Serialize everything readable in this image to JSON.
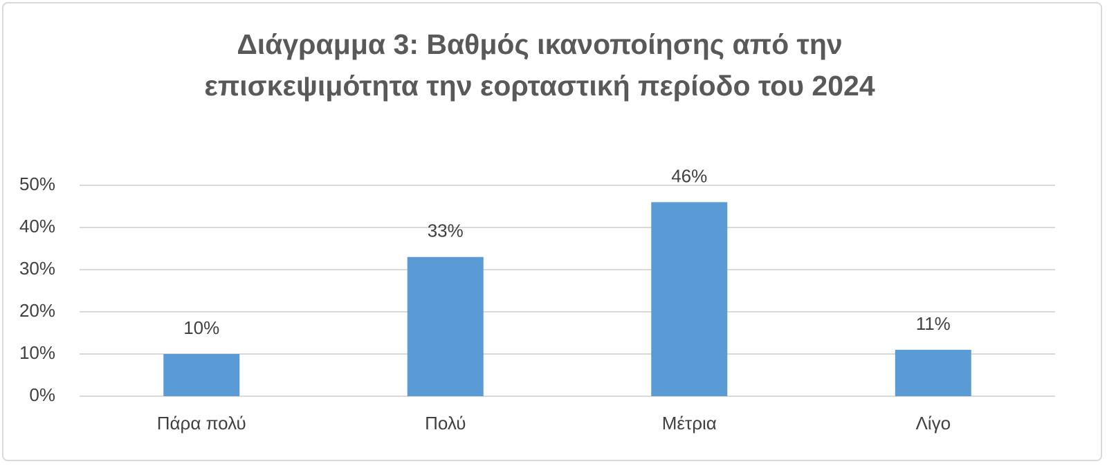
{
  "chart_data": {
    "type": "bar",
    "title": "Διάγραμμα 3: Βαθμός ικανοποίησης από την επισκεψιμότητα την εορταστική περίοδο του 2024",
    "categories": [
      "Πάρα πολύ",
      "Πολύ",
      "Μέτρια",
      "Λίγο"
    ],
    "values": [
      10,
      33,
      46,
      11
    ],
    "value_labels": [
      "10%",
      "33%",
      "46%",
      "11%"
    ],
    "color": "#5b9bd5",
    "ylim": [
      0,
      50
    ],
    "yticks": [
      {
        "value": 0,
        "label": "0%"
      },
      {
        "value": 10,
        "label": "10%"
      },
      {
        "value": 20,
        "label": "20%"
      },
      {
        "value": 30,
        "label": "30%"
      },
      {
        "value": 40,
        "label": "40%"
      },
      {
        "value": 50,
        "label": "50%"
      }
    ],
    "grid": true
  }
}
